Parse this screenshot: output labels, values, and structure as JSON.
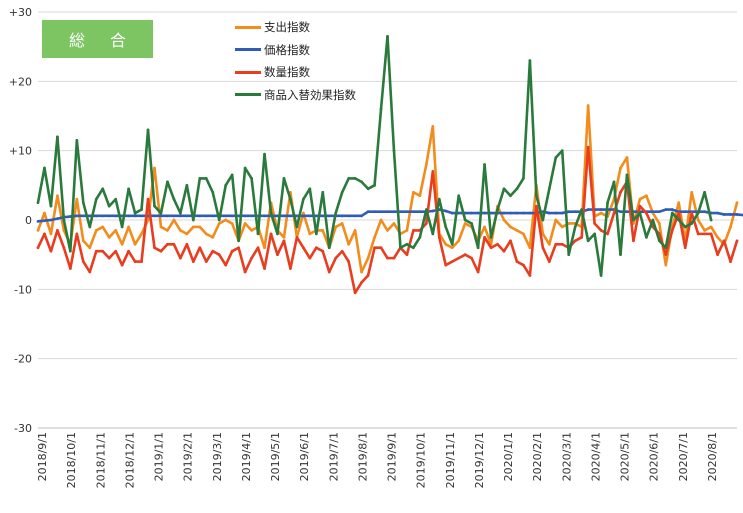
{
  "chart_data": {
    "type": "line",
    "title": "総 合",
    "title_box_color": "#7dc462",
    "xlabel": "",
    "ylabel": "",
    "ylim": [
      -30,
      30
    ],
    "yticks": [
      30,
      20,
      10,
      0,
      -10,
      -20,
      -30
    ],
    "ytick_labels": [
      "+30",
      "+20",
      "+10",
      "0",
      "-10",
      "-20",
      "-30"
    ],
    "grid": "horizontal",
    "legend_position": "top-center",
    "x_labels": [
      "2018/9/1",
      "2018/10/1",
      "2018/11/1",
      "2018/12/1",
      "2019/1/1",
      "2019/2/1",
      "2019/3/1",
      "2019/4/1",
      "2019/5/1",
      "2019/6/1",
      "2019/7/1",
      "2019/8/1",
      "2019/9/1",
      "2019/10/1",
      "2019/11/1",
      "2019/12/1",
      "2020/1/1",
      "2020/2/1",
      "2020/3/1",
      "2020/4/1",
      "2020/5/1",
      "2020/6/1",
      "2020/7/1",
      "2020/8/1"
    ],
    "series": [
      {
        "name": "支出指数",
        "color": "#f28c1c",
        "values": [
          -1.5,
          1,
          -2,
          3.5,
          -1.5,
          -3.5,
          3,
          -3,
          -4,
          -1.5,
          -1,
          -2.5,
          -1.5,
          -3.5,
          -1,
          -3.5,
          -2,
          0,
          7.5,
          -1,
          -1.5,
          0,
          -1.5,
          -2,
          -1,
          -1,
          -2,
          -2.5,
          -0.5,
          0,
          -0.5,
          -3,
          -0.5,
          -1.5,
          -1,
          -4,
          2.5,
          -1.5,
          -2.5,
          4,
          -2.5,
          1,
          -2,
          -1.5,
          -1.5,
          -4,
          -1,
          -0.5,
          -3.5,
          -1.5,
          -7.5,
          -5.5,
          -2.5,
          0,
          -1.5,
          -0.5,
          -2,
          -1.5,
          4,
          3.5,
          8,
          13.5,
          -2,
          -3.5,
          -4,
          -3,
          -0.5,
          -1,
          -3,
          -1,
          -3.5,
          2,
          0,
          -1,
          -1.5,
          -2,
          -4,
          5,
          -2,
          -3.5,
          0,
          -1,
          -0.5,
          -0.5,
          -1,
          16.5,
          0.5,
          1,
          0.5,
          3,
          7.5,
          9,
          -0.5,
          3,
          3.5,
          1,
          -0.5,
          -6.5,
          -1,
          2.5,
          -3,
          4,
          0,
          -1.5,
          -1,
          -2.5,
          -3.5,
          -1,
          2.5
        ]
      },
      {
        "name": "価格指数",
        "color": "#2f5cb8",
        "values": [
          -0.2,
          -0.1,
          0,
          0.2,
          0.4,
          0.5,
          0.6,
          0.6,
          0.6,
          0.6,
          0.6,
          0.6,
          0.6,
          0.6,
          0.6,
          0.6,
          0.6,
          0.6,
          0.6,
          0.6,
          0.6,
          0.6,
          0.6,
          0.6,
          0.6,
          0.6,
          0.6,
          0.6,
          0.6,
          0.6,
          0.6,
          0.6,
          0.6,
          0.6,
          0.6,
          0.6,
          0.6,
          0.6,
          0.6,
          0.6,
          0.6,
          0.6,
          0.6,
          0.6,
          0.6,
          0.6,
          0.6,
          0.6,
          0.6,
          0.6,
          0.6,
          1.2,
          1.2,
          1.2,
          1.2,
          1.2,
          1.2,
          1.2,
          1.2,
          1.2,
          1.2,
          1.3,
          1.5,
          1.3,
          1,
          1,
          1,
          1,
          1,
          1,
          1,
          1,
          1,
          1,
          1,
          1,
          1,
          1,
          1.2,
          1,
          1,
          1,
          1.2,
          1.2,
          1.2,
          1.5,
          1.5,
          1.5,
          1.5,
          1.5,
          1.2,
          1.2,
          1.2,
          1.2,
          1.2,
          1.2,
          1.2,
          1.5,
          1.5,
          1.2,
          1.2,
          1.2,
          1.2,
          1.2,
          1,
          1,
          0.8,
          0.8,
          0.8,
          0.7
        ]
      },
      {
        "name": "数量指数",
        "color": "#e83d1f",
        "values": [
          -4,
          -2,
          -4.5,
          -1.5,
          -4,
          -7,
          -2,
          -6,
          -7.5,
          -4.5,
          -4.5,
          -5.5,
          -4.5,
          -6.5,
          -4.5,
          -6,
          -6,
          3,
          -4,
          -4.5,
          -3.5,
          -3.5,
          -5.5,
          -3.5,
          -6,
          -4,
          -6,
          -4.5,
          -5,
          -6.5,
          -4.5,
          -4,
          -7.5,
          -5.5,
          -4,
          -7,
          -2,
          -5,
          -3,
          -7,
          -2.5,
          -4,
          -5.5,
          -4,
          -4.5,
          -7.5,
          -5.5,
          -4.5,
          -6,
          -10.5,
          -9,
          -8,
          -4,
          -4,
          -5.5,
          -5.5,
          -4,
          -5,
          -1.5,
          -1.5,
          -0.5,
          7,
          -2.5,
          -6.5,
          -6,
          -5.5,
          -5,
          -5.5,
          -7.5,
          -2.5,
          -4,
          -3.5,
          -4.5,
          -3,
          -6,
          -6.5,
          -8,
          2,
          -4,
          -6,
          -3.5,
          -3.5,
          -4,
          -3,
          -2.5,
          10.5,
          -0.5,
          -1.5,
          -2,
          1,
          4,
          5.5,
          -3,
          2,
          1,
          -1,
          -2,
          -5,
          -1.5,
          1,
          -4,
          1,
          -2,
          -2,
          -2,
          -5,
          -3,
          -6,
          -3
        ]
      },
      {
        "name": "商品入替効果指数",
        "color": "#2a7a3c",
        "values": [
          2.5,
          7.5,
          2,
          12,
          0,
          -4.5,
          11.5,
          2.5,
          -1,
          3,
          4.5,
          2,
          3,
          -1,
          4.5,
          1,
          1.5,
          13,
          2,
          1,
          5.5,
          3,
          1,
          5,
          0,
          6,
          6,
          4,
          0,
          5,
          6.5,
          -3,
          7.5,
          6,
          -2,
          9.5,
          1,
          -2,
          6,
          3,
          -1,
          3,
          4.5,
          -2,
          4,
          -4,
          1,
          4,
          6,
          6,
          5.5,
          4.5,
          5,
          16,
          26.5,
          10,
          -4,
          -3.5,
          -4,
          -2.5,
          1.5,
          -2,
          3,
          -1,
          -3.5,
          3.5,
          0,
          -0.5,
          -4,
          8,
          -2.5,
          1.5,
          4.5,
          3.5,
          4.5,
          6,
          23,
          3.5,
          0,
          4.5,
          9,
          10,
          -5,
          -1,
          1.5,
          -3,
          -2,
          -8,
          2.5,
          5.5,
          -5,
          6.5,
          0,
          1,
          -2.5,
          0,
          -3,
          -4,
          1,
          0,
          -1,
          -0.5,
          1,
          4,
          0
        ]
      }
    ]
  }
}
